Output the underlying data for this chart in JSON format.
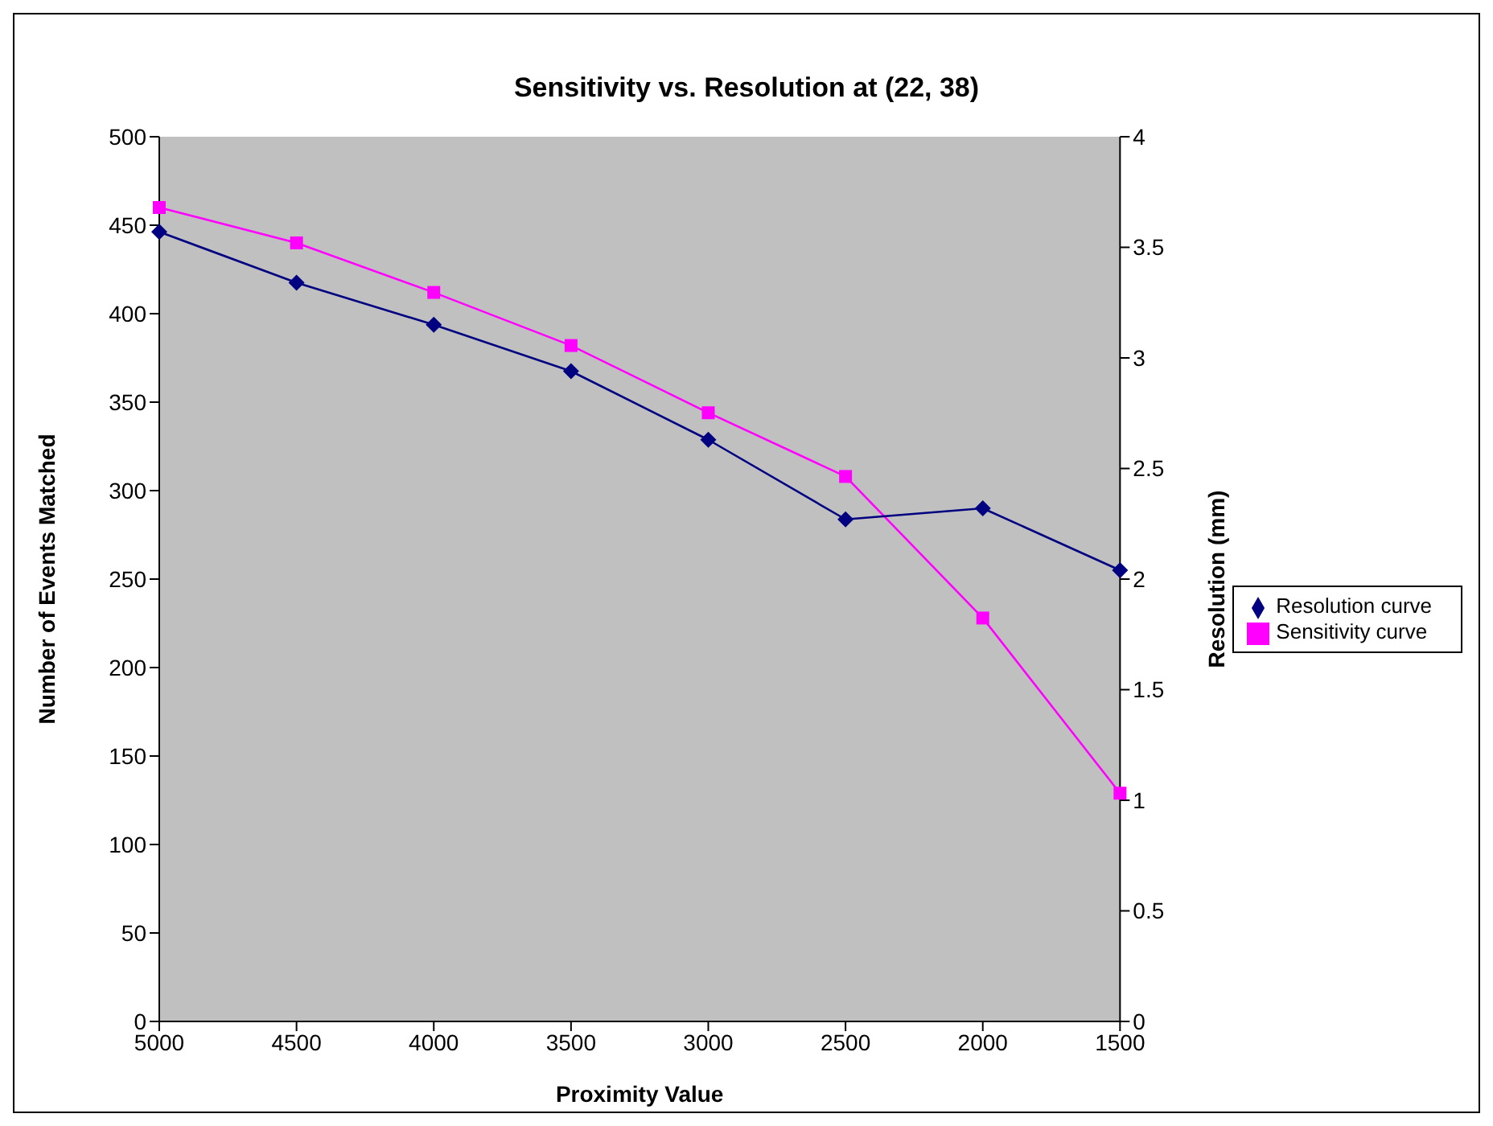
{
  "chart_data": {
    "type": "line",
    "title": "Sensitivity vs. Resolution at (22, 38)",
    "xlabel": "Proximity Value",
    "ylabel": "Number of Events Matched",
    "y2label": "Resolution (mm)",
    "categories": [
      "5000",
      "4500",
      "4000",
      "3500",
      "3000",
      "2500",
      "2000",
      "1500"
    ],
    "series": [
      {
        "name": "Sensitivity curve",
        "color": "#ff00ff",
        "marker": "square",
        "values": [
          460,
          440,
          412,
          382,
          344,
          308,
          228,
          129
        ]
      },
      {
        "name": "Resolution curve",
        "color": "#000080",
        "marker": "diamond",
        "axis": "y2",
        "values": [
          3.57,
          3.34,
          3.15,
          2.94,
          2.63,
          2.27,
          2.32,
          2.04
        ]
      }
    ],
    "ylim": [
      0,
      500
    ],
    "yticks": [
      0,
      50,
      100,
      150,
      200,
      250,
      300,
      350,
      400,
      450,
      500
    ],
    "y2lim": [
      0,
      4
    ],
    "y2ticks": [
      0,
      0.5,
      1,
      1.5,
      2,
      2.5,
      3,
      3.5,
      4
    ],
    "grid": false,
    "legend": "right",
    "line_style": "solid"
  }
}
